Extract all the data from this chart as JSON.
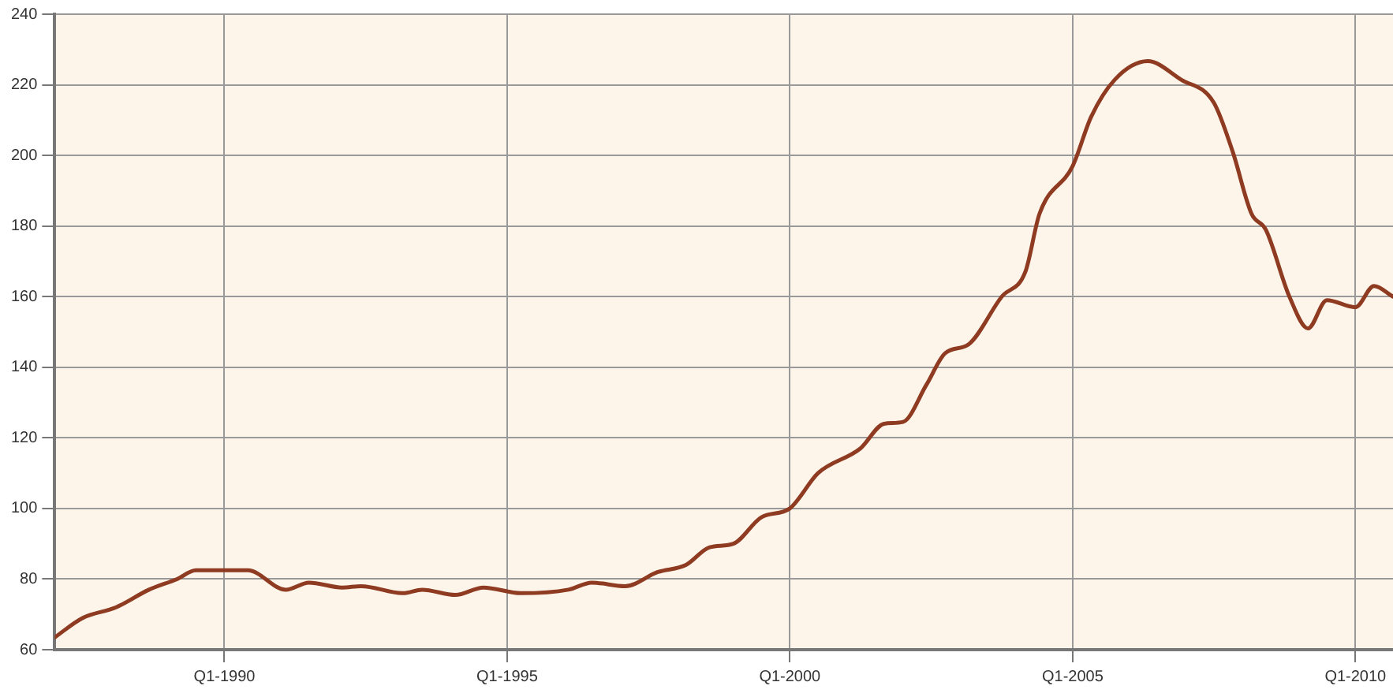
{
  "chart_data": {
    "type": "line",
    "x": [
      "1987-01",
      "1987-07",
      "1988-02",
      "1988-09",
      "1989-03",
      "1989-07",
      "1990-01",
      "1990-06",
      "1991-02",
      "1991-07",
      "1992-02",
      "1992-06",
      "1993-03",
      "1993-07",
      "1994-02",
      "1994-08",
      "1995-04",
      "1996-02",
      "1996-07",
      "1997-02",
      "1997-09",
      "1998-03",
      "1998-08",
      "1999-01",
      "1999-07",
      "2000-01",
      "2000-07",
      "2001-04",
      "2001-09",
      "2002-01",
      "2002-06",
      "2002-10",
      "2003-03",
      "2003-10",
      "2004-03",
      "2004-06",
      "2005-01",
      "2005-05",
      "2005-10",
      "2006-05",
      "2006-12",
      "2007-07",
      "2007-11",
      "2008-03",
      "2008-06",
      "2008-11",
      "2009-03",
      "2009-07",
      "2010-01",
      "2010-05",
      "2010-09"
    ],
    "series": [
      {
        "color": "#8e3b22",
        "values": [
          63.5,
          69,
          72,
          77,
          80,
          82.5,
          82.5,
          82.5,
          77,
          79,
          77.6,
          78,
          76,
          77,
          75.5,
          77.6,
          76,
          77,
          79,
          78,
          82,
          84,
          89,
          90,
          97.5,
          100,
          110,
          117,
          124,
          124.5,
          135,
          144,
          146.5,
          160,
          167,
          183.5,
          197,
          211,
          221.5,
          226.7,
          221.5,
          215,
          201,
          183.5,
          179,
          160,
          151,
          159,
          157,
          163,
          160
        ]
      }
    ],
    "xlim": [
      "1987-01",
      "2010-09"
    ],
    "xticks": [
      {
        "value": "1990-01",
        "label": "Q1-1990"
      },
      {
        "value": "1995-01",
        "label": "Q1-1995"
      },
      {
        "value": "2000-01",
        "label": "Q1-2000"
      },
      {
        "value": "2005-01",
        "label": "Q1-2005"
      },
      {
        "value": "2010-01",
        "label": "Q1-2010"
      }
    ],
    "ylim": [
      60,
      240
    ],
    "yticks": [
      60,
      80,
      100,
      120,
      140,
      160,
      180,
      200,
      220,
      240
    ],
    "grid": true,
    "legend": false,
    "marker": "none",
    "line_style": "solid"
  }
}
